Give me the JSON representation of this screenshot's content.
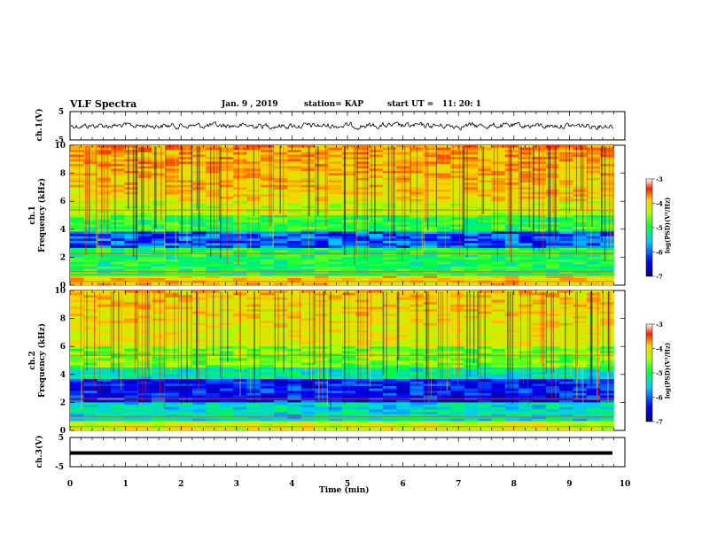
{
  "header": {
    "title": "VLF Spectra",
    "date": "Jan. 9 , 2019",
    "station": "station= KAP",
    "start": "start UT =   11: 20: 1"
  },
  "chart_data": [
    {
      "type": "line",
      "panel": "ch1-waveform",
      "ylabel": "ch.1(V)",
      "ylim": [
        -5,
        5
      ],
      "yticks": [
        "5",
        "-5"
      ],
      "xlim": [
        0,
        10
      ],
      "series": [
        {
          "values": "noisy waveform fluctuating roughly between -3 and 3 V for 0 to 9.8 min"
        }
      ]
    },
    {
      "type": "heatmap",
      "panel": "ch1-spectrogram",
      "ylabel": "ch.1\nFrequency (kHz)",
      "ylim": [
        0,
        10
      ],
      "yticks": [
        "0",
        "2",
        "4",
        "6",
        "8",
        "10"
      ],
      "xlim": [
        0,
        9.8
      ],
      "colorbar": {
        "label": "log(PSD)(V²/Hz)",
        "range": [
          -7,
          -3
        ],
        "ticks": [
          "-3",
          "-4",
          "-5",
          "-6",
          "-7"
        ]
      }
    },
    {
      "type": "heatmap",
      "panel": "ch2-spectrogram",
      "ylabel": "ch.2\nFrequency (kHz)",
      "ylim": [
        0,
        10
      ],
      "yticks": [
        "0",
        "2",
        "4",
        "6",
        "8",
        "10"
      ],
      "xlim": [
        0,
        9.8
      ],
      "colorbar": {
        "label": "log(PSD)(V²/Hz)",
        "range": [
          -7,
          -3
        ],
        "ticks": [
          "-3",
          "-4",
          "-5",
          "-6",
          "-7"
        ]
      }
    },
    {
      "type": "line",
      "panel": "ch3-waveform",
      "ylabel": "ch.3(V)",
      "ylim": [
        -5,
        5
      ],
      "yticks": [
        "5",
        "-5"
      ],
      "xlim": [
        0,
        10
      ],
      "series": [
        {
          "values": "flat line at approximately -1 V from 0 to 9.8 min"
        }
      ]
    }
  ],
  "xaxis": {
    "label": "Time (min)",
    "ticks": [
      "0",
      "1",
      "2",
      "3",
      "4",
      "5",
      "6",
      "7",
      "8",
      "9",
      "10"
    ]
  },
  "colors": {
    "axis": "#000000",
    "colormap": [
      "#00007f",
      "#0000ff",
      "#00a0ff",
      "#00ffc8",
      "#00ff00",
      "#ffff00",
      "#ff8000",
      "#ff0000",
      "#ffffff"
    ]
  }
}
